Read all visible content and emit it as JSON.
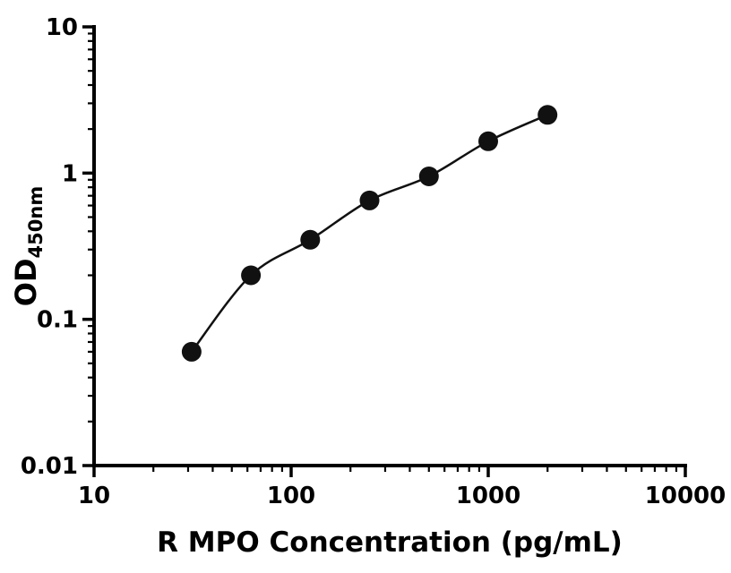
{
  "chart_data": {
    "type": "scatter",
    "title": "",
    "xlabel": "R MPO Concentration (pg/mL)",
    "ylabel_main": "OD",
    "ylabel_sub": "450nm",
    "x": [
      31.25,
      62.5,
      125,
      250,
      500,
      1000,
      2000
    ],
    "y": [
      0.06,
      0.2,
      0.35,
      0.65,
      0.95,
      1.65,
      2.5
    ],
    "xscale": "log",
    "yscale": "log",
    "xlim": [
      10,
      10000
    ],
    "ylim": [
      0.01,
      10
    ],
    "x_ticks": [
      10,
      100,
      1000,
      10000
    ],
    "x_tick_labels": [
      "10",
      "100",
      "1000",
      "10000"
    ],
    "y_ticks": [
      0.01,
      0.1,
      1,
      10
    ],
    "y_tick_labels": [
      "0.01",
      "0.1",
      "1",
      "10"
    ],
    "grid": false,
    "legend": null,
    "line_color": "#111111",
    "marker_color": "#111111",
    "axis_color": "#000000",
    "background_color": "#ffffff"
  }
}
